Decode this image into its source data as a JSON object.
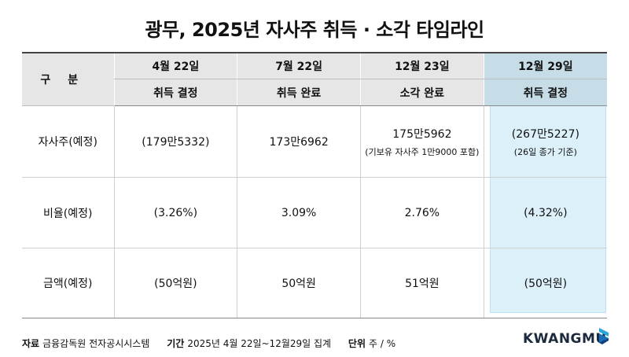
{
  "title": "광무, 2025년 자사주 취득 · 소각 타임라인",
  "table": {
    "category_header": "구분",
    "columns": [
      {
        "date": "4월 22일",
        "action": "취득 결정"
      },
      {
        "date": "7월 22일",
        "action": "취득 완료"
      },
      {
        "date": "12월 23일",
        "action": "소각 완료"
      },
      {
        "date": "12월 29일",
        "action": "취득 결정"
      }
    ],
    "rows": [
      {
        "label": "자사주(예정)",
        "cells": [
          {
            "main": "(179만5332)",
            "sub": ""
          },
          {
            "main": "173만6962",
            "sub": ""
          },
          {
            "main": "175만5962",
            "sub": "(기보유 자사주 1만9000 포함)"
          },
          {
            "main": "(267만5227)",
            "sub": "(26일 종가 기준)"
          }
        ]
      },
      {
        "label": "비율(예정)",
        "cells": [
          {
            "main": "(3.26%)",
            "sub": ""
          },
          {
            "main": "3.09%",
            "sub": ""
          },
          {
            "main": "2.76%",
            "sub": ""
          },
          {
            "main": "(4.32%)",
            "sub": ""
          }
        ]
      },
      {
        "label": "금액(예정)",
        "cells": [
          {
            "main": "(50억원)",
            "sub": ""
          },
          {
            "main": "50억원",
            "sub": ""
          },
          {
            "main": "51억원",
            "sub": ""
          },
          {
            "main": "(50억원)",
            "sub": ""
          }
        ]
      }
    ],
    "highlight_color": "#dcf0fa"
  },
  "footer": {
    "source_label": "자료",
    "source_value": "금융감독원 전자공시시스템",
    "period_label": "기간",
    "period_value": "2025년 4월 22일~12월29일 집계",
    "unit_label": "단위",
    "unit_value": "주 / %"
  },
  "logo": "KWANGMU"
}
